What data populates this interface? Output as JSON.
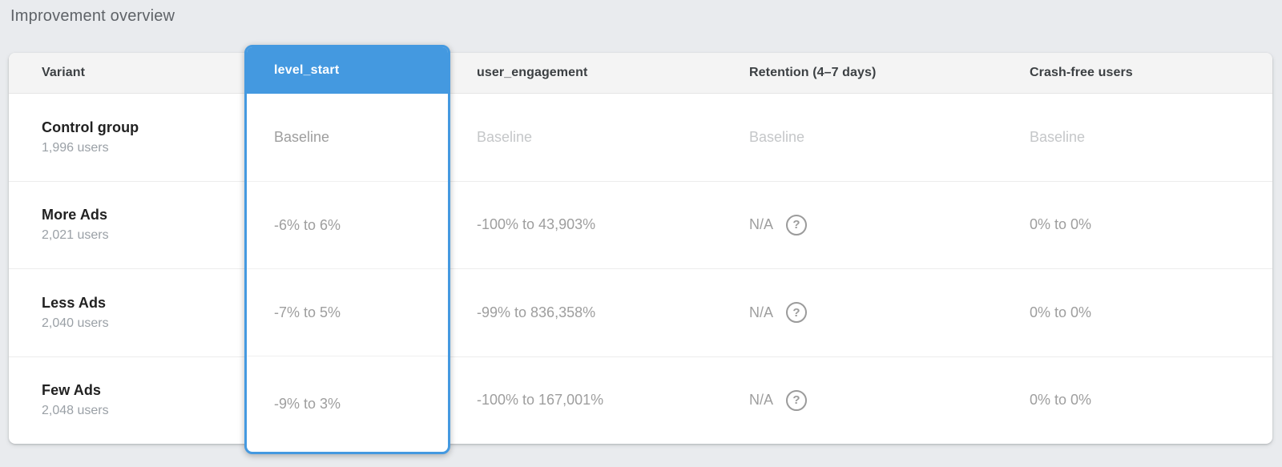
{
  "title": "Improvement overview",
  "colors": {
    "accent_blue": "#4499e0",
    "page_background": "#e9ebee",
    "header_background": "#f4f4f4",
    "value_gray": "#9e9e9e",
    "baseline_gray": "#c5c7c9"
  },
  "icons": {
    "help": "?"
  },
  "table": {
    "columns": [
      "Variant",
      "level_start",
      "user_engagement",
      "Retention (4–7 days)",
      "Crash-free users"
    ],
    "selected_column": "level_start",
    "rows": [
      {
        "name": "Control group",
        "users": "1,996 users",
        "level_start": "Baseline",
        "user_engagement": "Baseline",
        "retention": "Baseline",
        "crash_free": "Baseline"
      },
      {
        "name": "More Ads",
        "users": "2,021 users",
        "level_start": "-6% to 6%",
        "user_engagement": "-100% to 43,903%",
        "retention": "N/A",
        "crash_free": "0% to 0%"
      },
      {
        "name": "Less Ads",
        "users": "2,040 users",
        "level_start": "-7% to 5%",
        "user_engagement": "-99% to 836,358%",
        "retention": "N/A",
        "crash_free": "0% to 0%"
      },
      {
        "name": "Few Ads",
        "users": "2,048 users",
        "level_start": "-9% to 3%",
        "user_engagement": "-100% to 167,001%",
        "retention": "N/A",
        "crash_free": "0% to 0%"
      }
    ]
  }
}
